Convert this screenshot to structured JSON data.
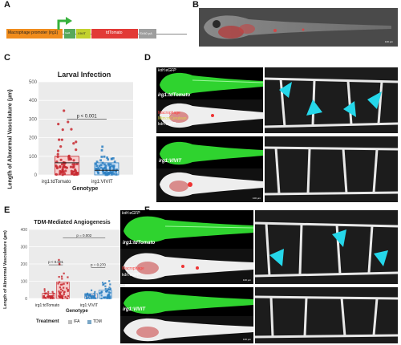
{
  "panels": {
    "A": {
      "label": "A",
      "construct": {
        "promoter": "Macrophage promoter (irg1)",
        "gal4": "Gal4",
        "vivit": "VIVIT",
        "reporter": "tdTomato",
        "polya": "SV40 pA"
      }
    },
    "B": {
      "label": "B",
      "scale": "100 µm"
    },
    "C": {
      "label": "C",
      "chart_data": {
        "type": "bar",
        "title": "Larval Infection",
        "xlabel": "Genotype",
        "ylabel": "Length of Abnormal Vasculature (µm)",
        "ylim": [
          0,
          500
        ],
        "yticks": [
          0,
          100,
          200,
          300,
          400,
          500
        ],
        "categories": [
          "irg1:tdTomato",
          "irg1:VIVIT"
        ],
        "values": [
          100,
          65
        ],
        "medians": [
          65,
          25
        ],
        "colors": [
          "#c8282f",
          "#2b7fc2"
        ],
        "fill_colors": [
          "#f6cfcf",
          "#cfe3f6"
        ],
        "annotation": "p < 0.001"
      }
    },
    "D": {
      "label": "D",
      "top": {
        "ch1": "kdrl:eGFP",
        "genotype": "irg1:tdTomato",
        "ch2a": "Macrophage",
        "ch2b": "Mtm:mCerulean",
        "ch2c": "kdrl:eGFP",
        "scale": "100 µm"
      },
      "bottom": {
        "genotype": "irg1:VIVIT",
        "scale": "100 µm"
      }
    },
    "E": {
      "label": "E",
      "chart_data": {
        "type": "bar",
        "title": "TDM-Mediated Angiogenesis",
        "xlabel": "Genotype",
        "ylabel": "Length of Abnormal Vasculature (µm)",
        "ylim": [
          0,
          400
        ],
        "yticks": [
          0,
          100,
          200,
          300,
          400
        ],
        "categories": [
          "irg1:tdTomato",
          "irg1:VIVIT"
        ],
        "series": [
          {
            "name": "IFA",
            "values": [
              30,
              28
            ]
          },
          {
            "name": "TDM",
            "values": [
              95,
              48
            ]
          }
        ],
        "series_colors": [
          "#c8282f",
          "#2b7fc2"
        ],
        "legend_title": "Treatment",
        "annotations": {
          "p1": "p < 0.001",
          "p2": "p = 0.002",
          "p3": "p = 0.270"
        }
      }
    },
    "F": {
      "label": "F",
      "top": {
        "ch1": "kdrl:eGFP",
        "genotype": "irg1:tdTomato",
        "ch2a": "Macrophage",
        "ch2b": "kdrl:eGFP",
        "scale": "100 µm"
      },
      "bottom": {
        "genotype": "irg1:VIVIT",
        "scale": "100 µm"
      }
    }
  }
}
